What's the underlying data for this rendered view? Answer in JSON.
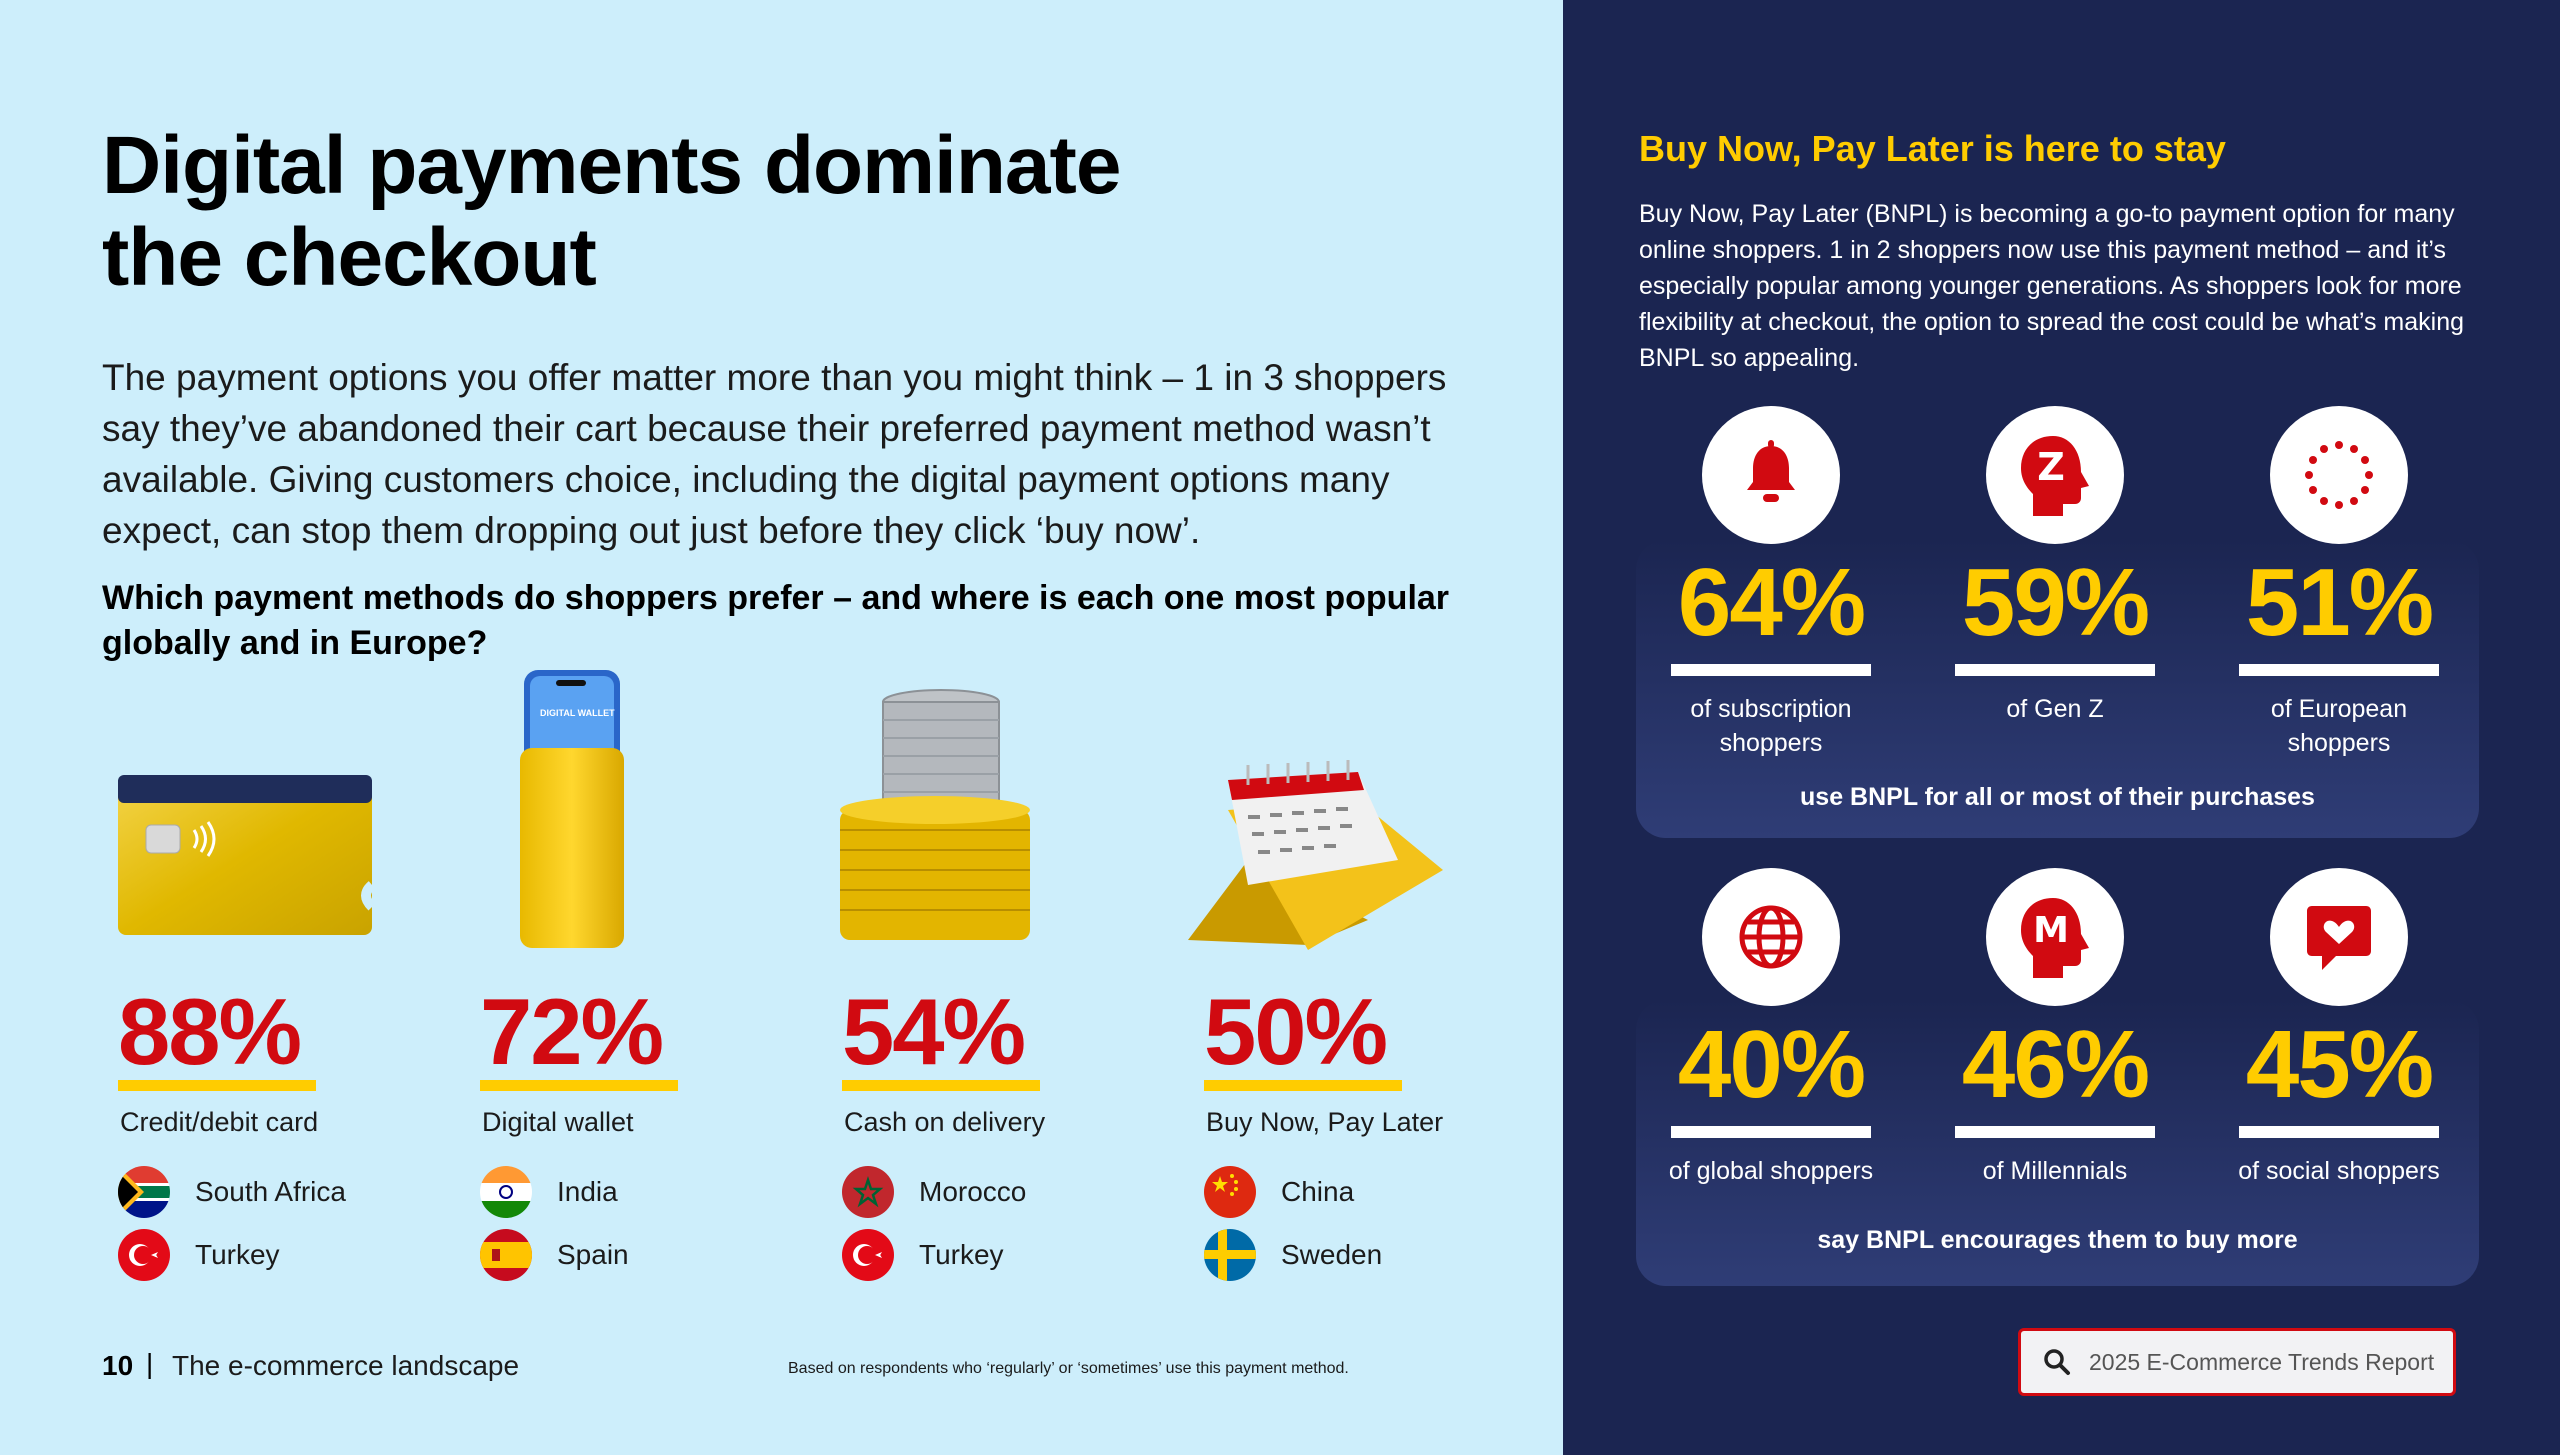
{
  "left": {
    "title_line1": "Digital payments dominate",
    "title_line2": "the checkout",
    "intro": "The payment options you offer matter more than you might think – 1 in 3 shoppers say they’ve abandoned their cart because their preferred payment method wasn’t available. Giving customers choice, including the digital payment options many expect, can stop them dropping out just before they click ‘buy now’.",
    "question": "Which payment methods do shoppers prefer – and where is each one most popular globally and in Europe?",
    "methods": [
      {
        "pct": "88%",
        "label": "Credit/debit card",
        "countries": [
          "South Africa",
          "Turkey"
        ],
        "flags": [
          "south-africa-flag-icon",
          "turkey-flag-icon"
        ]
      },
      {
        "pct": "72%",
        "label": "Digital wallet",
        "countries": [
          "India",
          "Spain"
        ],
        "flags": [
          "india-flag-icon",
          "spain-flag-icon"
        ]
      },
      {
        "pct": "54%",
        "label": "Cash on delivery",
        "countries": [
          "Morocco",
          "Turkey"
        ],
        "flags": [
          "morocco-flag-icon",
          "turkey-flag-icon"
        ]
      },
      {
        "pct": "50%",
        "label": "Buy Now, Pay Later",
        "countries": [
          "China",
          "Sweden"
        ],
        "flags": [
          "china-flag-icon",
          "sweden-flag-icon"
        ]
      }
    ],
    "wallet_screen_text": "DIGITAL WALLET",
    "footer": {
      "page": "10",
      "sep": "|",
      "section": "The e-commerce landscape"
    },
    "footnote": "Based on respondents who ‘regularly’ or ‘sometimes’ use this payment method."
  },
  "right": {
    "title": "Buy Now, Pay Later is here to stay",
    "body": "Buy Now, Pay Later (BNPL) is becoming a go-to payment option for many online shoppers. 1 in 2 shoppers now use this payment method – and it’s especially popular among younger generations. As shoppers look for more flexibility at checkout, the option to spread the cost could be what’s making BNPL so appealing.",
    "box1": {
      "stats": [
        {
          "pct": "64%",
          "label": "of subscription shoppers",
          "icon": "bell-icon"
        },
        {
          "pct": "59%",
          "label": "of Gen Z",
          "icon": "head-z-icon",
          "letter": "Z"
        },
        {
          "pct": "51%",
          "label": "of European shoppers",
          "icon": "eu-stars-icon"
        }
      ],
      "caption": "use BNPL for all or most of their purchases"
    },
    "box2": {
      "stats": [
        {
          "pct": "40%",
          "label": "of global shoppers",
          "icon": "globe-icon"
        },
        {
          "pct": "46%",
          "label": "of Millennials",
          "icon": "head-m-icon",
          "letter": "M"
        },
        {
          "pct": "45%",
          "label": "of social shoppers",
          "icon": "heart-chat-icon"
        }
      ],
      "caption": "say BNPL encourages them to buy more"
    },
    "search": {
      "text": "2025 E-Commerce Trends Report",
      "icon": "search-icon"
    }
  },
  "colors": {
    "red": "#d10a11",
    "yellow": "#ffcc00",
    "navy": "#1b2551",
    "sky": "#cdeefb"
  }
}
